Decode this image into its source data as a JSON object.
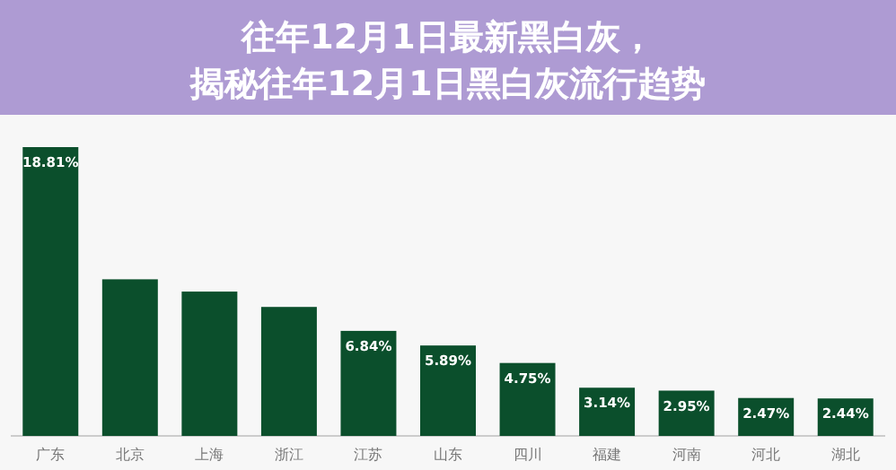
{
  "chart_data": {
    "type": "bar",
    "title": "往年12月1日最新黑白灰，揭秘往年12月1日黑白灰流行趋势",
    "categories": [
      "广东",
      "北京",
      "上海",
      "浙江",
      "江苏",
      "山东",
      "四川",
      "福建",
      "河南",
      "河北",
      "湖北"
    ],
    "values": [
      18.81,
      10.2,
      9.4,
      8.4,
      6.84,
      5.89,
      4.75,
      3.14,
      2.95,
      2.47,
      2.44
    ],
    "value_labels": [
      "18.81%",
      null,
      null,
      null,
      "6.84%",
      "5.89%",
      "4.75%",
      "3.14%",
      "2.95%",
      "2.47%",
      "2.44%"
    ],
    "color": "#0b4f2c"
  }
}
